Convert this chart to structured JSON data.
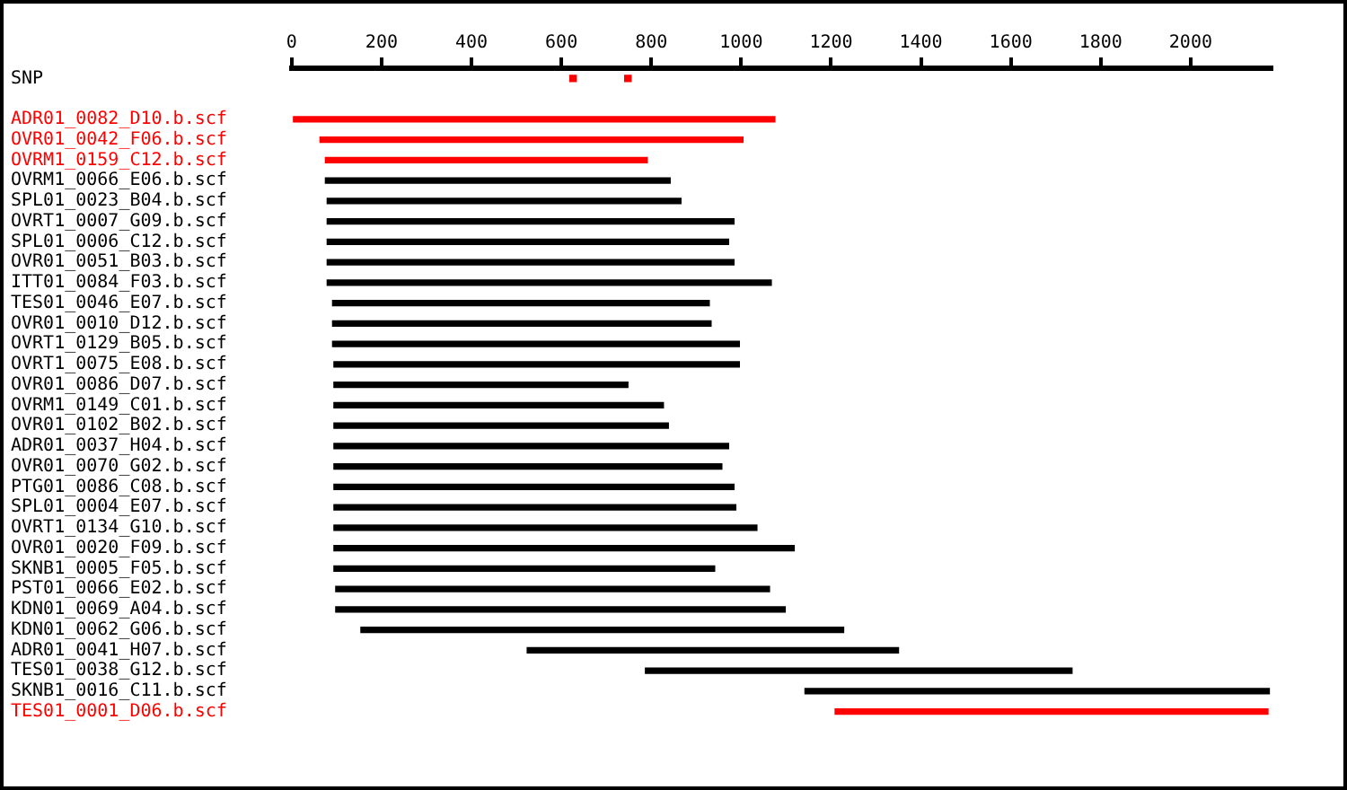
{
  "chart_data": {
    "type": "bar",
    "orientation": "horizontal",
    "categories": [
      "SNP",
      null,
      "ADR01_0082_D10.b.scf",
      "OVR01_0042_F06.b.scf",
      "OVRM1_0159_C12.b.scf",
      "OVRM1_0066_E06.b.scf",
      "SPL01_0023_B04.b.scf",
      "OVRT1_0007_G09.b.scf",
      "SPL01_0006_C12.b.scf",
      "OVR01_0051_B03.b.scf",
      "ITT01_0084_F03.b.scf",
      "TES01_0046_E07.b.scf",
      "OVR01_0010_D12.b.scf",
      "OVRT1_0129_B05.b.scf",
      "OVRT1_0075_E08.b.scf",
      "OVR01_0086_D07.b.scf",
      "OVRM1_0149_C01.b.scf",
      "OVR01_0102_B02.b.scf",
      "ADR01_0037_H04.b.scf",
      "OVR01_0070_G02.b.scf",
      "PTG01_0086_C08.b.scf",
      "SPL01_0004_E07.b.scf",
      "OVRT1_0134_G10.b.scf",
      "OVR01_0020_F09.b.scf",
      "SKNB1_0005_F05.b.scf",
      "PST01_0066_E02.b.scf",
      "KDN01_0069_A04.b.scf",
      "KDN01_0062_G06.b.scf",
      "ADR01_0041_H07.b.scf",
      "TES01_0038_G12.b.scf",
      "SKNB1_0016_C11.b.scf",
      "TES01_0001_D06.b.scf"
    ],
    "series": [
      {
        "type": "bar",
        "base": [
          null,
          null,
          0,
          63,
          75,
          75,
          79,
          79,
          79,
          79,
          79,
          91,
          91,
          91,
          94,
          94,
          94,
          94,
          94,
          94,
          94,
          94,
          94,
          94,
          94,
          98,
          98,
          154,
          524,
          787,
          1142,
          1209
        ],
        "values": [
          null,
          null,
          1075,
          941,
          716,
          767,
          787,
          905,
          893,
          905,
          988,
          838,
          842,
          905,
          902,
          654,
          733,
          744,
          878,
          863,
          890,
          894,
          941,
          1024,
          847,
          965,
          1000,
          1074,
          826,
          949,
          1033,
          963
        ],
        "colors": [
          "#000000",
          "#000000",
          "#ff0000",
          "#ff0000",
          "#ff0000",
          "#000000",
          "#000000",
          "#000000",
          "#000000",
          "#000000",
          "#000000",
          "#000000",
          "#000000",
          "#000000",
          "#000000",
          "#000000",
          "#000000",
          "#000000",
          "#000000",
          "#000000",
          "#000000",
          "#000000",
          "#000000",
          "#000000",
          "#000000",
          "#000000",
          "#000000",
          "#000000",
          "#000000",
          "#000000",
          "#000000",
          "#ff0000"
        ]
      },
      {
        "type": "scatter",
        "x": [
          "SNP",
          "SNP"
        ],
        "values": [
          626,
          748
        ],
        "color": "#ff0000",
        "marker": "square"
      }
    ],
    "xlim": [
      0,
      2180
    ],
    "xticks": [
      0,
      200,
      400,
      600,
      800,
      1000,
      1200,
      1400,
      1600,
      1800,
      2000
    ],
    "grid": false,
    "legend": false
  }
}
